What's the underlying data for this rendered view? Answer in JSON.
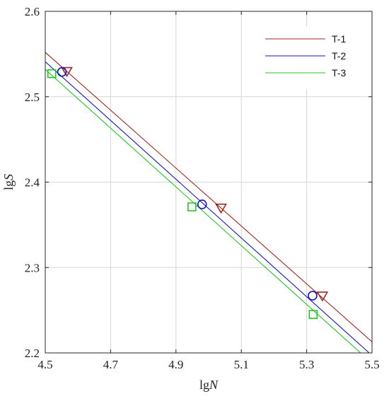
{
  "chart_data": {
    "type": "line",
    "title": "",
    "xlabel": {
      "prefix": "lg",
      "italic": "N"
    },
    "ylabel": {
      "prefix": "lg",
      "italic": "S"
    },
    "xlim": [
      4.5,
      5.5
    ],
    "ylim": [
      2.2,
      2.6
    ],
    "xticks": [
      "4.5",
      "4.7",
      "4.9",
      "5.1",
      "5.3",
      "5.5"
    ],
    "yticks": [
      "2.2",
      "2.3",
      "2.4",
      "2.5",
      "2.6"
    ],
    "grid": true,
    "legend_position": "top-right",
    "series": [
      {
        "name": "T-1",
        "color": "#a0281e",
        "marker": "triangle-down",
        "fit": {
          "x": [
            4.5,
            5.5
          ],
          "y": [
            2.552,
            2.213
          ]
        },
        "points": [
          {
            "x": 4.566,
            "y": 2.53
          },
          {
            "x": 5.038,
            "y": 2.37
          },
          {
            "x": 5.348,
            "y": 2.267
          }
        ]
      },
      {
        "name": "T-2",
        "color": "#1414c8",
        "marker": "circle",
        "fit": {
          "x": [
            4.5,
            5.5
          ],
          "y": [
            2.541,
            2.197
          ]
        },
        "points": [
          {
            "x": 4.551,
            "y": 2.529
          },
          {
            "x": 4.98,
            "y": 2.374
          },
          {
            "x": 5.318,
            "y": 2.267
          }
        ]
      },
      {
        "name": "T-3",
        "color": "#1ec81e",
        "marker": "square",
        "fit": {
          "x": [
            4.5,
            5.5
          ],
          "y": [
            2.532,
            2.188
          ]
        },
        "points": [
          {
            "x": 4.52,
            "y": 2.527
          },
          {
            "x": 4.949,
            "y": 2.371
          },
          {
            "x": 5.32,
            "y": 2.245
          }
        ]
      }
    ]
  }
}
